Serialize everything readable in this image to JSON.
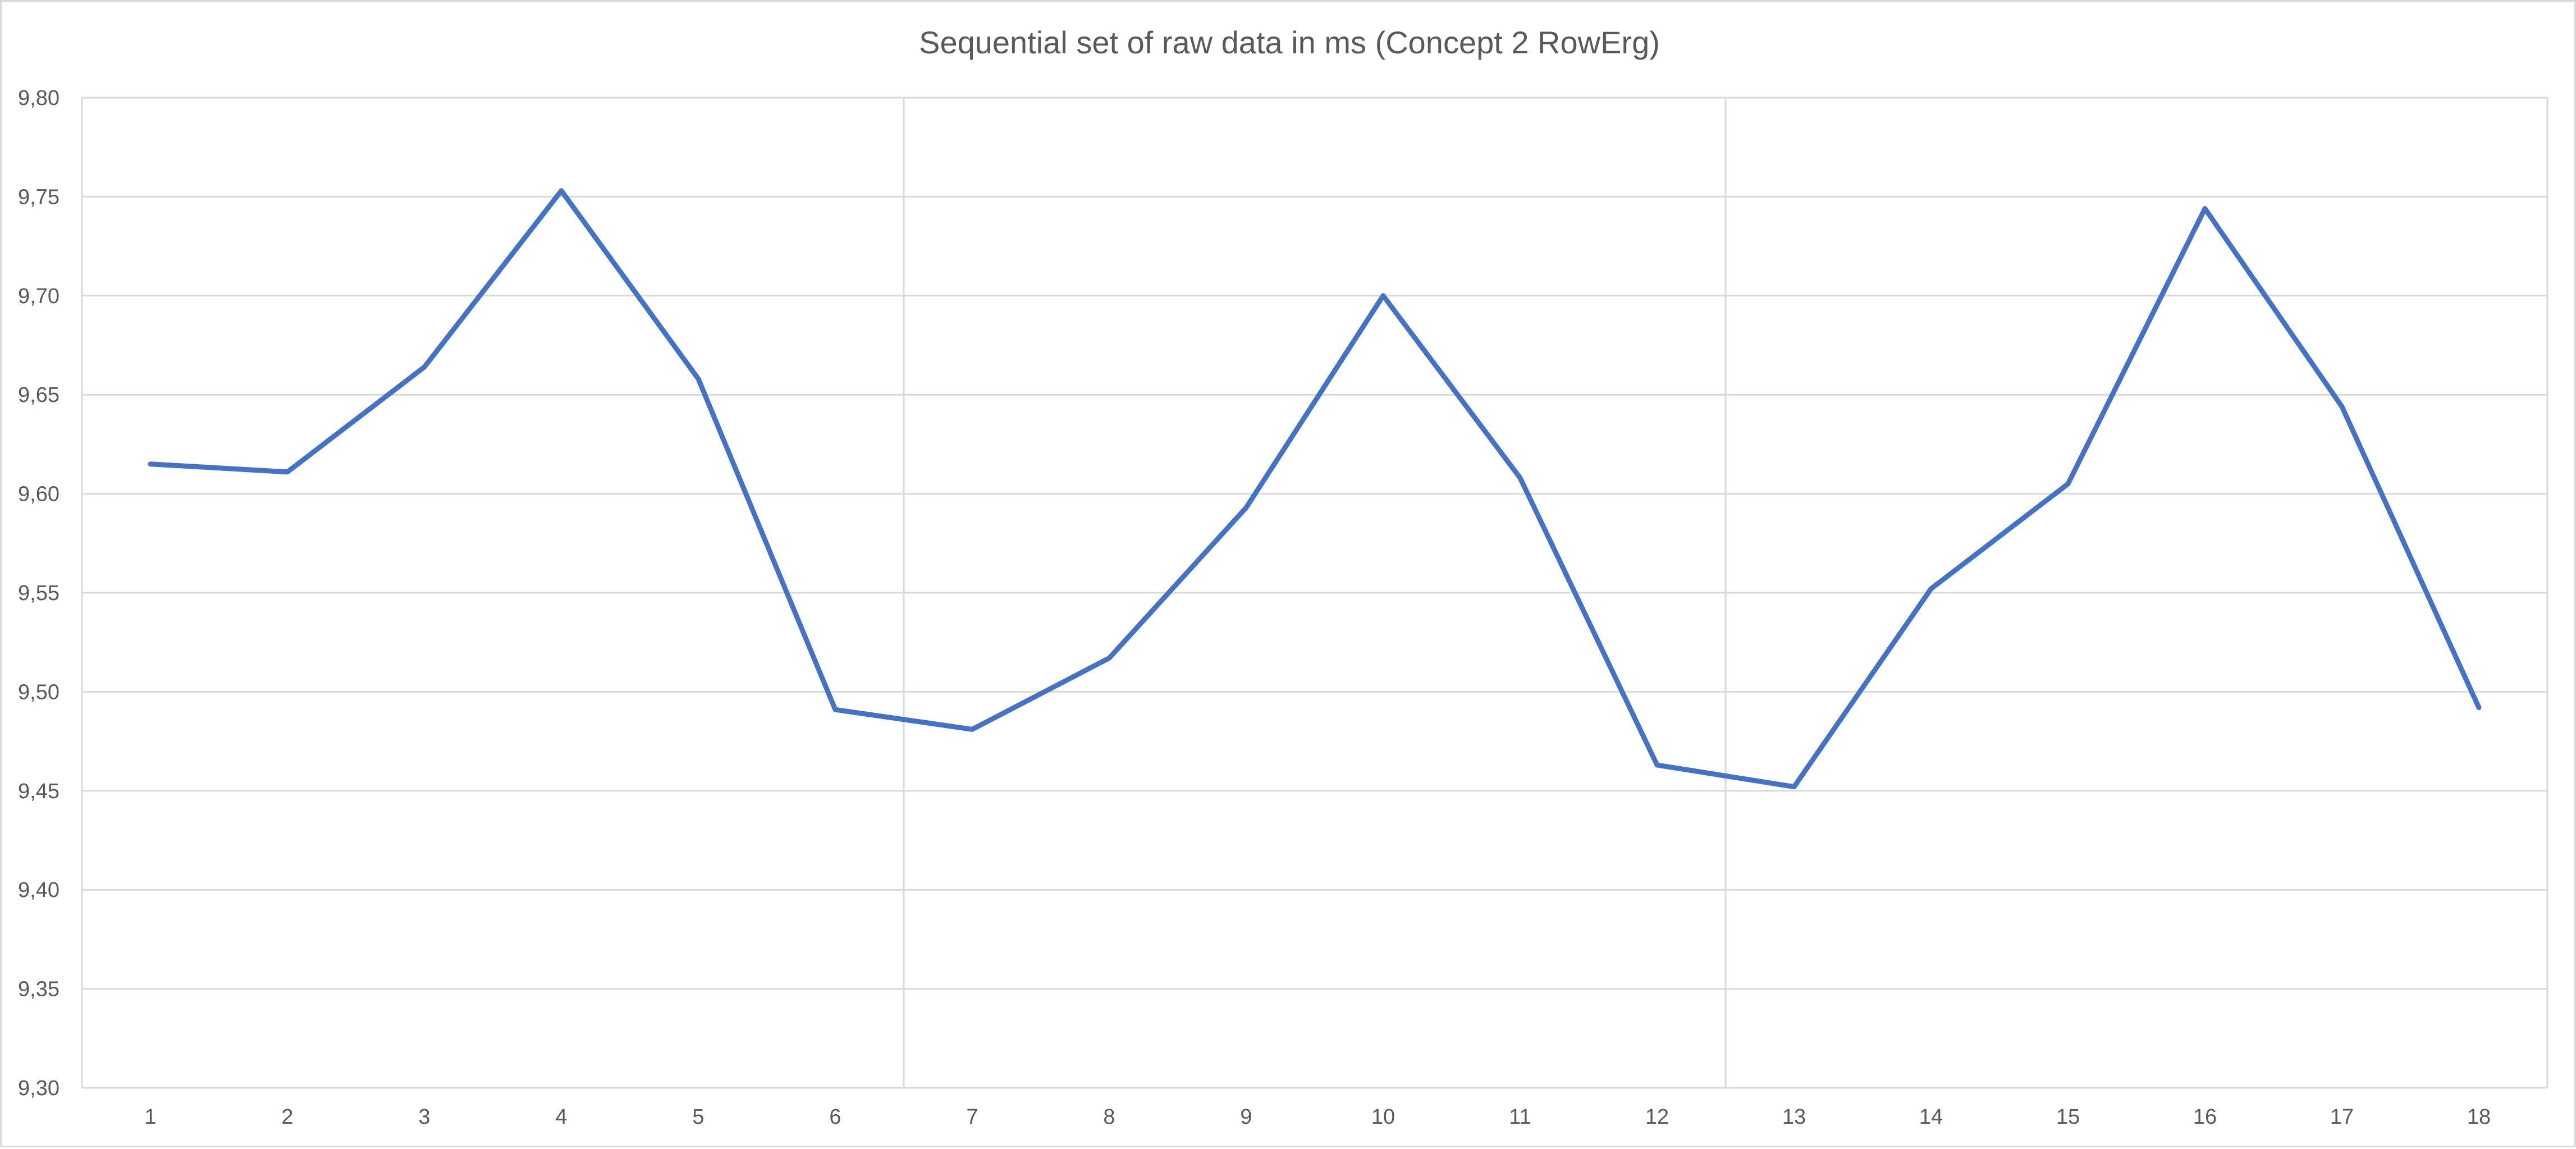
{
  "chart_data": {
    "type": "line",
    "title": "Sequential set of raw data in ms (Concept 2 RowErg)",
    "xlabel": "",
    "ylabel": "",
    "ylim": [
      9.3,
      9.8
    ],
    "y_ticks": [
      "9,30",
      "9,35",
      "9,40",
      "9,45",
      "9,50",
      "9,55",
      "9,60",
      "9,65",
      "9,70",
      "9,75",
      "9,80"
    ],
    "categories": [
      "1",
      "2",
      "3",
      "4",
      "5",
      "6",
      "7",
      "8",
      "9",
      "10",
      "11",
      "12",
      "13",
      "14",
      "15",
      "16",
      "17",
      "18"
    ],
    "series": [
      {
        "color": "#4472c4",
        "values": [
          9.615,
          9.611,
          9.664,
          9.753,
          9.658,
          9.491,
          9.481,
          9.517,
          9.593,
          9.7,
          9.608,
          9.463,
          9.452,
          9.552,
          9.605,
          9.744,
          9.644,
          9.492
        ]
      }
    ],
    "vertical_gridlines_after_category": [
      "6",
      "12"
    ],
    "grid": true,
    "legend": "none"
  }
}
